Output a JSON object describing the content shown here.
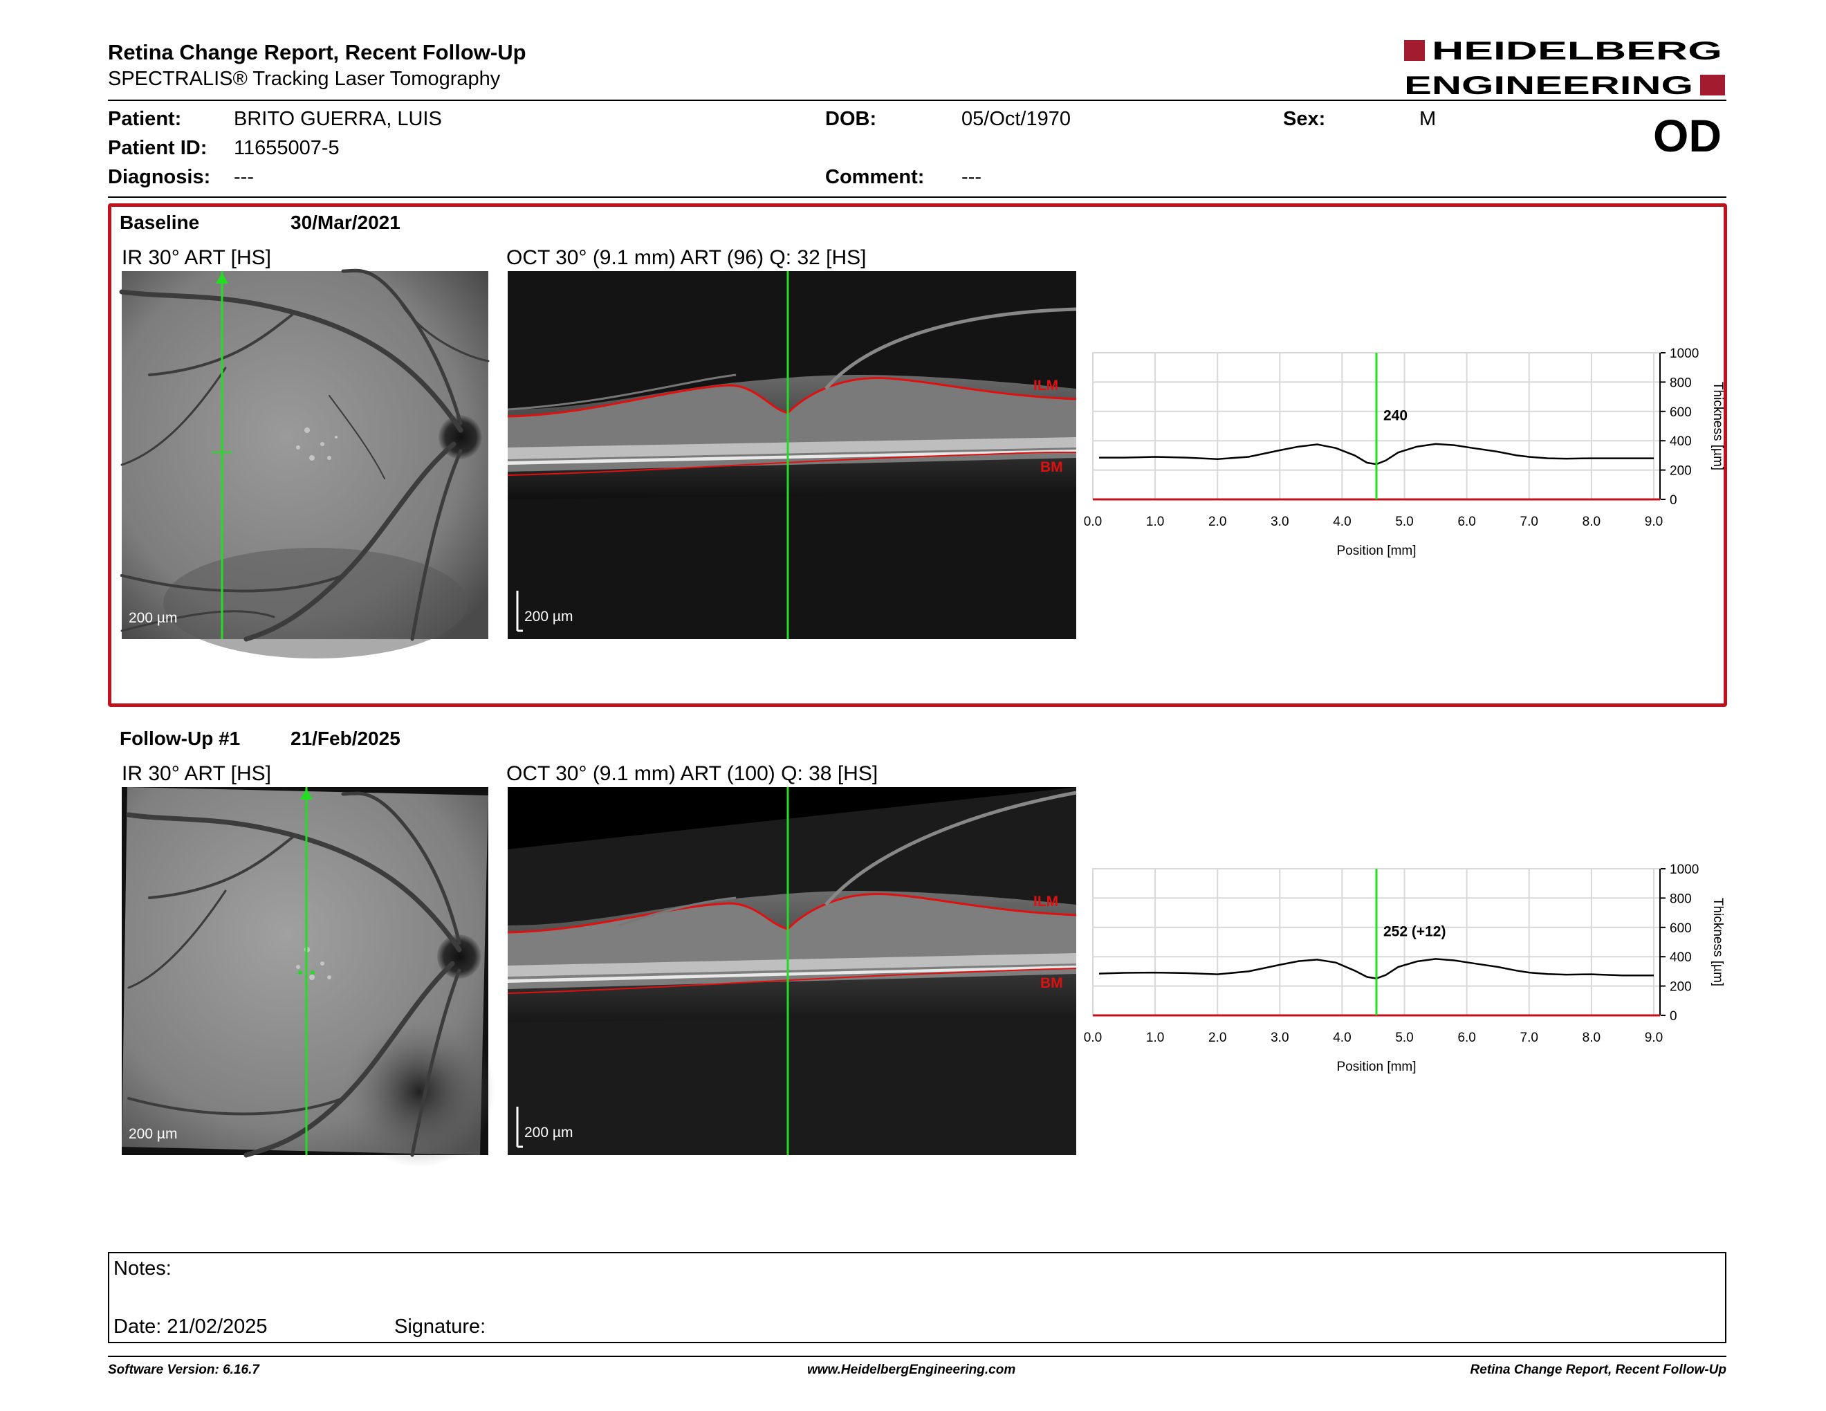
{
  "header": {
    "title": "Retina Change Report, Recent Follow-Up",
    "subtitle": "SPECTRALIS® Tracking Laser Tomography",
    "logo_line1": "HEIDELBERG",
    "logo_line2": "ENGINEERING"
  },
  "patient": {
    "patient_label": "Patient:",
    "patient_value": "BRITO GUERRA, LUIS",
    "id_label": "Patient ID:",
    "id_value": "11655007-5",
    "diagnosis_label": "Diagnosis:",
    "diagnosis_value": "---",
    "dob_label": "DOB:",
    "dob_value": "05/Oct/1970",
    "comment_label": "Comment:",
    "comment_value": "---",
    "sex_label": "Sex:",
    "sex_value": "M",
    "eye": "OD"
  },
  "baseline": {
    "label": "Baseline",
    "date": "30/Mar/2021",
    "ir_title": "IR 30° ART [HS]",
    "oct_title": "OCT 30° (9.1 mm) ART (96) Q: 32 [HS]",
    "ir_scale": "200 µm",
    "oct_scale": "200 µm",
    "layer_top": "ILM",
    "layer_bottom": "BM",
    "marker_value": "240"
  },
  "followup": {
    "label": "Follow-Up #1",
    "date": "21/Feb/2025",
    "ir_title": "IR 30° ART [HS]",
    "oct_title": "OCT 30° (9.1 mm) ART (100) Q: 38 [HS]",
    "ir_scale": "200 µm",
    "oct_scale": "200 µm",
    "layer_top": "ILM",
    "layer_bottom": "BM",
    "marker_value": "252 (+12)"
  },
  "chart_data": [
    {
      "type": "line",
      "xlabel": "Position [mm]",
      "ylabel": "Thickness [µm]",
      "xlim": [
        0,
        9.1
      ],
      "ylim": [
        0,
        1000
      ],
      "xticks": [
        "0.0",
        "1.0",
        "2.0",
        "3.0",
        "4.0",
        "5.0",
        "6.0",
        "7.0",
        "8.0",
        "9.0"
      ],
      "yticks": [
        "0",
        "200",
        "400",
        "600",
        "800",
        "1000"
      ],
      "grid": true,
      "marker_x": 4.55,
      "marker_label": "240",
      "x": [
        0.1,
        0.5,
        1.0,
        1.5,
        2.0,
        2.5,
        3.0,
        3.3,
        3.6,
        3.9,
        4.2,
        4.4,
        4.55,
        4.7,
        4.9,
        5.2,
        5.5,
        5.8,
        6.1,
        6.5,
        6.8,
        7.0,
        7.3,
        7.6,
        8.0,
        8.5,
        9.0
      ],
      "y": [
        285,
        285,
        290,
        285,
        275,
        290,
        335,
        360,
        375,
        350,
        300,
        250,
        240,
        265,
        320,
        360,
        378,
        370,
        350,
        325,
        300,
        290,
        280,
        278,
        280,
        280,
        280
      ]
    },
    {
      "type": "line",
      "xlabel": "Position [mm]",
      "ylabel": "Thickness [µm]",
      "xlim": [
        0,
        9.1
      ],
      "ylim": [
        0,
        1000
      ],
      "xticks": [
        "0.0",
        "1.0",
        "2.0",
        "3.0",
        "4.0",
        "5.0",
        "6.0",
        "7.0",
        "8.0",
        "9.0"
      ],
      "yticks": [
        "0",
        "200",
        "400",
        "600",
        "800",
        "1000"
      ],
      "grid": true,
      "marker_x": 4.55,
      "marker_label": "252 (+12)",
      "x": [
        0.1,
        0.5,
        1.0,
        1.5,
        2.0,
        2.5,
        3.0,
        3.3,
        3.6,
        3.9,
        4.2,
        4.4,
        4.55,
        4.7,
        4.9,
        5.2,
        5.5,
        5.8,
        6.1,
        6.5,
        6.8,
        7.0,
        7.3,
        7.6,
        8.0,
        8.5,
        9.0
      ],
      "y": [
        285,
        290,
        292,
        288,
        280,
        300,
        345,
        370,
        380,
        360,
        305,
        262,
        252,
        275,
        330,
        368,
        385,
        375,
        355,
        330,
        305,
        292,
        282,
        278,
        280,
        272,
        272
      ]
    }
  ],
  "notes": {
    "label": "Notes:",
    "date_text": "Date: 21/02/2025",
    "signature_label": "Signature:"
  },
  "footer": {
    "version": "Software Version: 6.16.7",
    "website": "www.HeidelbergEngineering.com",
    "report": "Retina Change Report, Recent Follow-Up"
  },
  "colors": {
    "accent": "#a31b2f",
    "frame": "#c0121c",
    "scan_line": "#22dd22",
    "layer_line": "#e01010"
  }
}
